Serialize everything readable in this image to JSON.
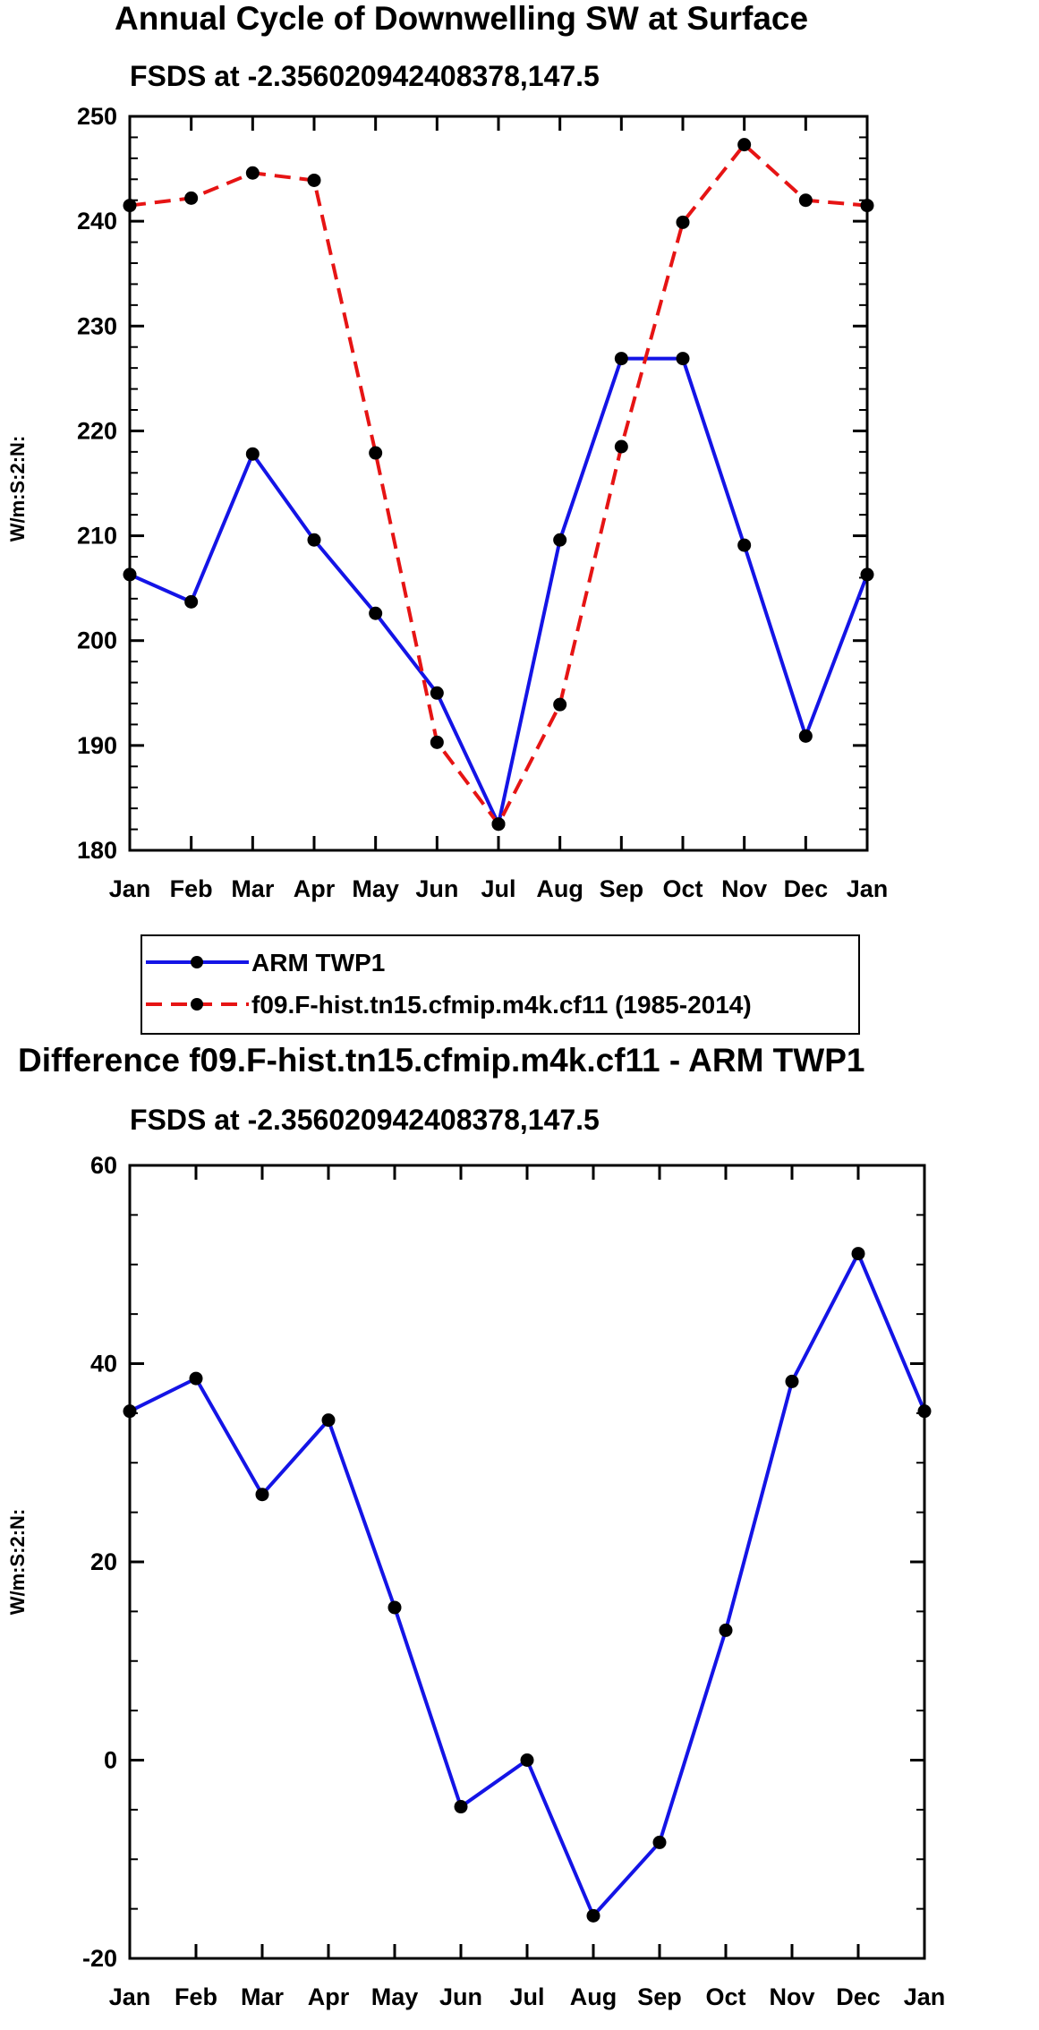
{
  "chart_data": [
    {
      "type": "line",
      "title": "Annual Cycle of Downwelling SW at Surface",
      "subtitle": "FSDS at -2.356020942408378,147.5",
      "xlabel": "",
      "ylabel": "W/m:S:2:N:",
      "categories": [
        "Jan",
        "Feb",
        "Mar",
        "Apr",
        "May",
        "Jun",
        "Jul",
        "Aug",
        "Sep",
        "Oct",
        "Nov",
        "Dec",
        "Jan"
      ],
      "yticks": [
        "180",
        "190",
        "200",
        "210",
        "220",
        "230",
        "240",
        "250"
      ],
      "ylim": [
        180,
        250
      ],
      "series": [
        {
          "name": "ARM TWP1",
          "color": "#1414e6",
          "dash": "solid",
          "values": [
            206.3,
            203.7,
            217.8,
            209.6,
            202.6,
            195.0,
            182.5,
            209.6,
            226.9,
            226.9,
            209.1,
            190.9,
            206.3
          ]
        },
        {
          "name": "f09.F-hist.tn15.cfmip.m4k.cf11 (1985-2014)",
          "color": "#e61414",
          "dash": "dashed",
          "values": [
            241.5,
            242.2,
            244.6,
            243.9,
            217.9,
            190.3,
            182.5,
            193.9,
            218.5,
            239.9,
            247.3,
            242.0,
            241.5
          ]
        }
      ],
      "legend_position": "below"
    },
    {
      "type": "line",
      "title": "Difference f09.F-hist.tn15.cfmip.m4k.cf11 - ARM TWP1",
      "subtitle": "FSDS at -2.356020942408378,147.5",
      "xlabel": "",
      "ylabel": "W/m:S:2:N:",
      "categories": [
        "Jan",
        "Feb",
        "Mar",
        "Apr",
        "May",
        "Jun",
        "Jul",
        "Aug",
        "Sep",
        "Oct",
        "Nov",
        "Dec",
        "Jan"
      ],
      "yticks": [
        "-20",
        "0",
        "20",
        "40",
        "60"
      ],
      "ylim": [
        -20,
        60
      ],
      "series": [
        {
          "name": "Difference",
          "color": "#1414e6",
          "dash": "solid",
          "values": [
            35.2,
            38.5,
            26.8,
            34.3,
            15.4,
            -4.7,
            0.0,
            -15.7,
            -8.3,
            13.1,
            38.2,
            51.1,
            35.2
          ]
        }
      ]
    }
  ]
}
